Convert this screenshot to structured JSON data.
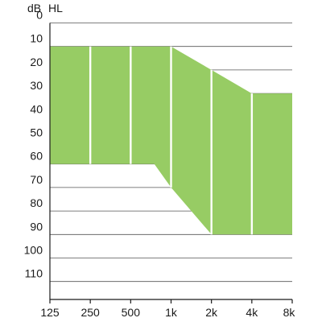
{
  "chart_data": {
    "type": "area",
    "title": "",
    "ylabel_unit": "dB",
    "ylabel_quantity": "HL",
    "xlabel": "",
    "x_scale": "log",
    "y_reversed": true,
    "x_ticks": [
      {
        "value": 125,
        "label": "125"
      },
      {
        "value": 250,
        "label": "250"
      },
      {
        "value": 500,
        "label": "500"
      },
      {
        "value": 1000,
        "label": "1k"
      },
      {
        "value": 2000,
        "label": "2k"
      },
      {
        "value": 4000,
        "label": "4k"
      },
      {
        "value": 8000,
        "label": "8k"
      }
    ],
    "y_ticks": [
      0,
      10,
      20,
      30,
      40,
      50,
      60,
      70,
      80,
      90,
      100,
      110
    ],
    "xlim": [
      125,
      8000
    ],
    "ylim": [
      -10,
      120
    ],
    "grid": "horizontal",
    "region": {
      "color": "#97cc64",
      "upper_boundary": [
        {
          "x": 125,
          "y": 10
        },
        {
          "x": 1000,
          "y": 10
        },
        {
          "x": 2000,
          "y": 20
        },
        {
          "x": 4000,
          "y": 30
        },
        {
          "x": 8000,
          "y": 30
        }
      ],
      "lower_boundary": [
        {
          "x": 125,
          "y": 60
        },
        {
          "x": 750,
          "y": 60
        },
        {
          "x": 1000,
          "y": 70
        },
        {
          "x": 2000,
          "y": 90
        },
        {
          "x": 8000,
          "y": 90
        }
      ]
    }
  }
}
